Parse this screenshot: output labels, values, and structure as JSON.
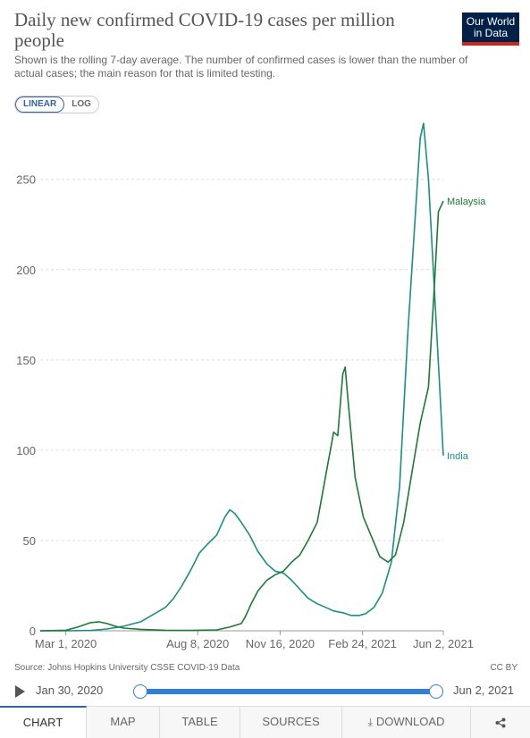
{
  "header": {
    "title": "Daily new confirmed COVID-19 cases per million people",
    "subtitle": "Shown is the rolling 7-day average. The number of confirmed cases is lower than the number of actual cases; the main reason for that is limited testing.",
    "logo_line1": "Our World",
    "logo_line2": "in Data"
  },
  "scale_toggle": {
    "linear": "LINEAR",
    "log": "LOG",
    "selected": "linear"
  },
  "chart_data": {
    "type": "line",
    "x_ticks": [
      "Mar 1, 2020",
      "Aug 8, 2020",
      "Nov 16, 2020",
      "Feb 24, 2021",
      "Jun 2, 2021"
    ],
    "y_ticks": [
      0,
      50,
      100,
      150,
      200,
      250
    ],
    "ylim": [
      0,
      285
    ],
    "xlim": [
      "2020-01-30",
      "2021-06-02"
    ],
    "grid": true,
    "series": [
      {
        "name": "India",
        "color": "#18907f",
        "points": [
          [
            "2020-01-30",
            0
          ],
          [
            "2020-03-01",
            0
          ],
          [
            "2020-04-01",
            0.2
          ],
          [
            "2020-04-20",
            1
          ],
          [
            "2020-05-10",
            2.5
          ],
          [
            "2020-05-31",
            5
          ],
          [
            "2020-06-15",
            9
          ],
          [
            "2020-06-30",
            13
          ],
          [
            "2020-07-10",
            18
          ],
          [
            "2020-07-20",
            25
          ],
          [
            "2020-07-31",
            34
          ],
          [
            "2020-08-10",
            43
          ],
          [
            "2020-08-20",
            48
          ],
          [
            "2020-08-31",
            53
          ],
          [
            "2020-09-10",
            63
          ],
          [
            "2020-09-16",
            67
          ],
          [
            "2020-09-22",
            65
          ],
          [
            "2020-09-30",
            60
          ],
          [
            "2020-10-10",
            53
          ],
          [
            "2020-10-20",
            44
          ],
          [
            "2020-10-31",
            37
          ],
          [
            "2020-11-10",
            33
          ],
          [
            "2020-11-20",
            32
          ],
          [
            "2020-11-30",
            28
          ],
          [
            "2020-12-10",
            23
          ],
          [
            "2020-12-20",
            18
          ],
          [
            "2020-12-31",
            15
          ],
          [
            "2021-01-10",
            13
          ],
          [
            "2021-01-20",
            11
          ],
          [
            "2021-01-31",
            10
          ],
          [
            "2021-02-10",
            8.5
          ],
          [
            "2021-02-20",
            8.5
          ],
          [
            "2021-02-28",
            9.5
          ],
          [
            "2021-03-10",
            13
          ],
          [
            "2021-03-20",
            21
          ],
          [
            "2021-03-31",
            38
          ],
          [
            "2021-04-10",
            80
          ],
          [
            "2021-04-20",
            165
          ],
          [
            "2021-04-30],",
            245
          ],
          [
            "2021-05-05",
            273
          ],
          [
            "2021-05-09",
            281
          ],
          [
            "2021-05-15",
            250
          ],
          [
            "2021-05-22",
            190
          ],
          [
            "2021-05-28",
            140
          ],
          [
            "2021-06-02",
            97
          ]
        ]
      },
      {
        "name": "Malaysia",
        "color": "#1d7a34",
        "points": [
          [
            "2020-01-30",
            0
          ],
          [
            "2020-03-01",
            0.3
          ],
          [
            "2020-03-15",
            2
          ],
          [
            "2020-03-31",
            4.5
          ],
          [
            "2020-04-10",
            5
          ],
          [
            "2020-04-20",
            4
          ],
          [
            "2020-04-30",
            2.5
          ],
          [
            "2020-05-10",
            1.5
          ],
          [
            "2020-05-31",
            0.8
          ],
          [
            "2020-06-30",
            0.3
          ],
          [
            "2020-07-31",
            0.2
          ],
          [
            "2020-08-31",
            0.5
          ],
          [
            "2020-09-15",
            2
          ],
          [
            "2020-09-30",
            4
          ],
          [
            "2020-10-05",
            8
          ],
          [
            "2020-10-12",
            15
          ],
          [
            "2020-10-20",
            22
          ],
          [
            "2020-10-31",
            28
          ],
          [
            "2020-11-10",
            31
          ],
          [
            "2020-11-20",
            33
          ],
          [
            "2020-11-30",
            38
          ],
          [
            "2020-12-10",
            42
          ],
          [
            "2020-12-20",
            50
          ],
          [
            "2020-12-31",
            60
          ],
          [
            "2021-01-10",
            85
          ],
          [
            "2021-01-20",
            110
          ],
          [
            "2021-01-25",
            108
          ],
          [
            "2021-01-31",
            142
          ],
          [
            "2021-02-03",
            146
          ],
          [
            "2021-02-07",
            125
          ],
          [
            "2021-02-15",
            85
          ],
          [
            "2021-02-25",
            63
          ],
          [
            "2021-03-07",
            52
          ],
          [
            "2021-03-17",
            41
          ],
          [
            "2021-03-27",
            38
          ],
          [
            "2021-04-05",
            42
          ],
          [
            "2021-04-15",
            60
          ],
          [
            "2021-04-25",
            88
          ],
          [
            "2021-05-05",
            115
          ],
          [
            "2021-05-15",
            135
          ],
          [
            "2021-05-22",
            190
          ],
          [
            "2021-05-27",
            232
          ],
          [
            "2021-06-02",
            238
          ]
        ]
      }
    ]
  },
  "footer": {
    "source": "Source: Johns Hopkins University CSSE COVID-19 Data",
    "license": "CC BY"
  },
  "timeline": {
    "start": "Jan 30, 2020",
    "end": "Jun 2, 2021"
  },
  "tabs": {
    "chart": "CHART",
    "map": "MAP",
    "table": "TABLE",
    "sources": "SOURCES",
    "download": "DOWNLOAD",
    "share_icon": "share-icon"
  }
}
